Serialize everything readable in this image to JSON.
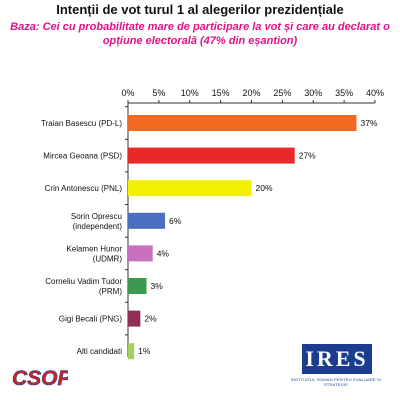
{
  "chart_data": {
    "type": "bar",
    "orientation": "horizontal",
    "title": "Intenții de vot turul 1 al alegerilor prezidențiale",
    "subtitle_lines": [
      "Baza: Cei cu probabilitate mare de participare la vot și care au declarat o",
      "opțiune electorală (47% din eșantion)"
    ],
    "xlim": [
      0,
      40
    ],
    "x_ticks": [
      "0%",
      "5%",
      "10%",
      "15%",
      "20%",
      "25%",
      "30%",
      "35%",
      "40%"
    ],
    "x_tick_values": [
      0,
      5,
      10,
      15,
      20,
      25,
      30,
      35,
      40
    ],
    "grid": false,
    "bars": [
      {
        "label_lines": [
          "Traian Basescu (PD-L)"
        ],
        "value": 37,
        "value_label": "37%",
        "color": "#f26a22"
      },
      {
        "label_lines": [
          "Mircea Geoana (PSD)"
        ],
        "value": 27,
        "value_label": "27%",
        "color": "#e8292a"
      },
      {
        "label_lines": [
          "Crin Antonescu (PNL)"
        ],
        "value": 20,
        "value_label": "20%",
        "color": "#f2f000"
      },
      {
        "label_lines": [
          "Sorin Oprescu",
          "(independent)"
        ],
        "value": 6,
        "value_label": "6%",
        "color": "#4a6fc0"
      },
      {
        "label_lines": [
          "Kelamen Hunor",
          "(UDMR)"
        ],
        "value": 4,
        "value_label": "4%",
        "color": "#c86fc0"
      },
      {
        "label_lines": [
          "Corneliu Vadim Tudor",
          "(PRM)"
        ],
        "value": 3,
        "value_label": "3%",
        "color": "#3b9a4f"
      },
      {
        "label_lines": [
          "Gigi Becali (PNG)"
        ],
        "value": 2,
        "value_label": "2%",
        "color": "#8e2f55"
      },
      {
        "label_lines": [
          "Alti candidati"
        ],
        "value": 1,
        "value_label": "1%",
        "color": "#a8d060"
      }
    ]
  },
  "logos": {
    "left": "CSOP",
    "right": "IRES",
    "right_caption": "INSTITUTUL ROMAN PENTRU EVALUARE SI STRATEGIE",
    "left_color": "#d92020",
    "right_color": "#1a3d8f"
  }
}
